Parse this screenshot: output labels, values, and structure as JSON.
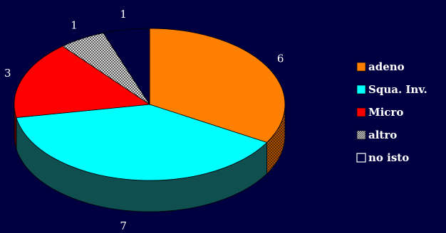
{
  "chart_data": {
    "type": "pie",
    "title": "",
    "three_d": true,
    "legend_position": "right",
    "slices": [
      {
        "label": "adeno",
        "value": 6,
        "color": "#ff7f00",
        "pattern": "solid"
      },
      {
        "label": "Squa. Inv.",
        "value": 7,
        "color": "#00ffff",
        "pattern": "solid"
      },
      {
        "label": "Micro",
        "value": 3,
        "color": "#ff0000",
        "pattern": "solid"
      },
      {
        "label": "altro",
        "value": 1,
        "color": "#9a9a9a",
        "pattern": "dotted"
      },
      {
        "label": "no isto",
        "value": 1,
        "color": "#ffffff",
        "pattern": "outline"
      }
    ]
  }
}
